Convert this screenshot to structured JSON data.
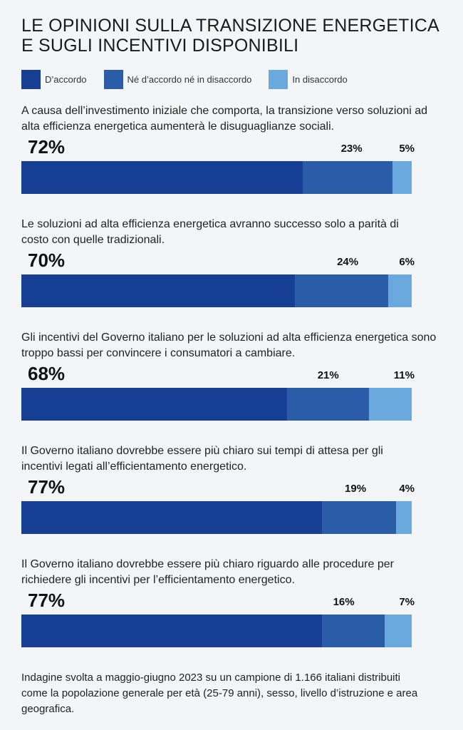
{
  "chart_data": {
    "type": "bar",
    "stacked": true,
    "orientation": "horizontal",
    "title": "LE OPINIONI SULLA TRANSIZIONE ENERGETICA E SUGLI INCENTIVI DISPONIBILI",
    "legend_position": "top",
    "series": [
      {
        "name": "D’accordo",
        "color": "#173f94",
        "values": [
          72,
          70,
          68,
          77,
          77
        ]
      },
      {
        "name": "Né d’accordo né in disaccordo",
        "color": "#2b5ca8",
        "values": [
          23,
          24,
          21,
          19,
          16
        ]
      },
      {
        "name": "In disaccordo",
        "color": "#69a9de",
        "values": [
          5,
          6,
          11,
          4,
          7
        ]
      }
    ],
    "categories": [
      "A causa dell’investimento iniziale che comporta, la transizione verso soluzioni ad alta efficienza energetica aumenterà le disuguaglianze sociali.",
      "Le soluzioni ad alta efficienza energetica avranno successo solo a parità di costo con quelle tradizionali.",
      "Gli incentivi del Governo italiano per le soluzioni ad alta efficienza energetica sono troppo bassi per convincere i consumatori a cambiare.",
      "Il Governo italiano dovrebbe essere più chiaro sui tempi di attesa per gli incentivi legati all’efficientamento energetico.",
      "Il Governo italiano dovrebbe essere più chiaro riguardo alle procedure per richiedere gli incentivi per l’efficientamento energetico."
    ],
    "unit": "%",
    "grid": false
  },
  "note": "Indagine svolta a maggio-giugno 2023 su un campione di 1.166 italiani distribuiti come la popolazione generale per età (25-79 anni), sesso, livello d’istruzione e area geografica."
}
